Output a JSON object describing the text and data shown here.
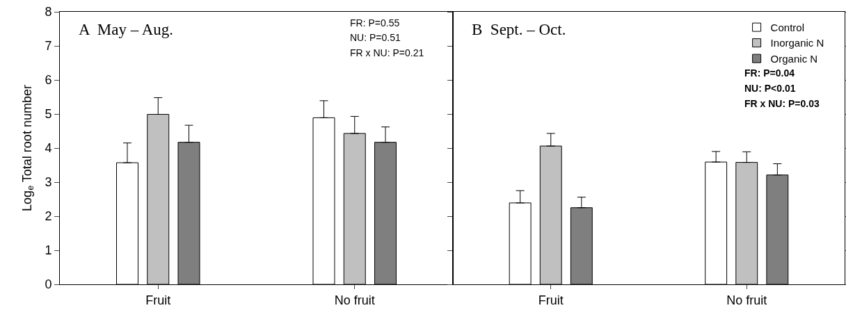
{
  "chart_data": [
    {
      "type": "bar",
      "ylabel": "Log$_{e}$ Total root number",
      "categories": [
        "Fruit",
        "No fruit"
      ],
      "ylim": [
        0,
        8
      ],
      "yticks": [
        0,
        1,
        2,
        3,
        4,
        5,
        6,
        7,
        8
      ],
      "grid": false,
      "legend": false,
      "annotations": [
        "A  May – Aug.",
        "FR: P=0.55",
        "NU: P=0.51",
        "FR x NU: P=0.21"
      ],
      "series": [
        {
          "color": "#ffffff",
          "values": [
            3.57,
            4.89
          ],
          "errors": [
            [
              3.57,
              4.15
            ],
            [
              4.89,
              5.39
            ]
          ]
        },
        {
          "color": "#c0c0c0",
          "values": [
            4.99,
            4.43
          ],
          "errors": [
            [
              4.99,
              5.48
            ],
            [
              4.43,
              4.93
            ]
          ]
        },
        {
          "color": "#7f7f7f",
          "values": [
            4.17,
            4.17
          ],
          "errors": [
            [
              4.17,
              4.67
            ],
            [
              4.17,
              4.62
            ]
          ]
        }
      ]
    },
    {
      "type": "bar",
      "categories": [
        "Fruit",
        "No fruit"
      ],
      "ylim": [
        0,
        8
      ],
      "yticks": [
        0,
        1,
        2,
        3,
        4,
        5,
        6,
        7,
        8
      ],
      "tick_labels": "x",
      "grid": false,
      "legend": "top right",
      "annotations": [
        "B  Sept. – Oct.",
        "FR: P=0.04",
        "NU: P<0.01",
        "FR x NU: P=0.03"
      ],
      "series": [
        {
          "name": "Control",
          "color": "#ffffff",
          "values": [
            2.39,
            3.59
          ],
          "errors": [
            [
              2.39,
              2.75
            ],
            [
              3.59,
              3.9
            ]
          ]
        },
        {
          "name": "Inorganic N",
          "color": "#c0c0c0",
          "values": [
            4.06,
            3.58
          ],
          "errors": [
            [
              4.06,
              4.43
            ],
            [
              3.58,
              3.89
            ]
          ]
        },
        {
          "name": "Organic N",
          "color": "#7f7f7f",
          "values": [
            2.25,
            3.21
          ],
          "errors": [
            [
              2.25,
              2.56
            ],
            [
              3.21,
              3.54
            ]
          ]
        }
      ]
    }
  ]
}
